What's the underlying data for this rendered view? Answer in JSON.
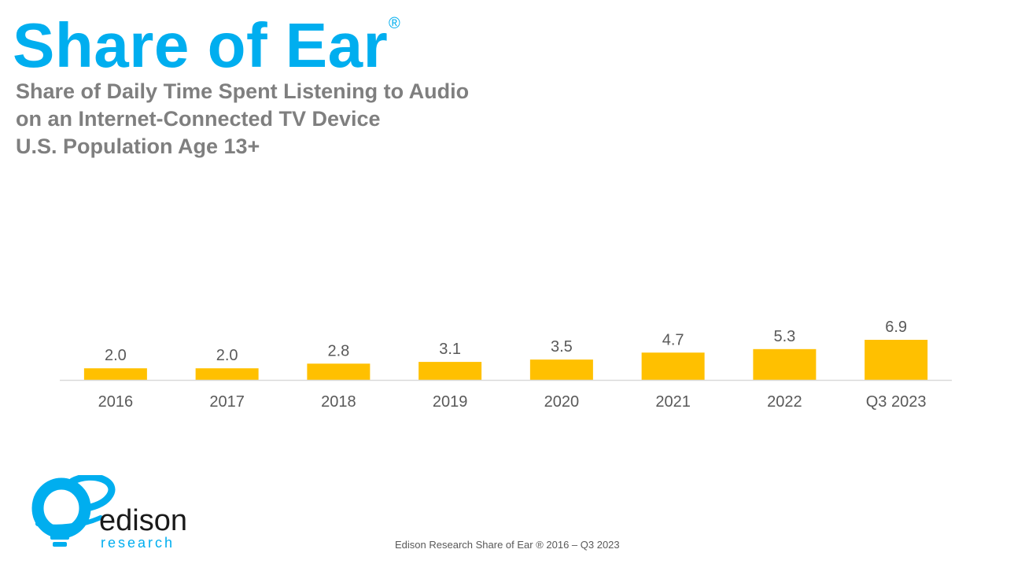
{
  "header": {
    "brand_title": "Share of Ear",
    "reg_mark": "®",
    "subtitle_lines": [
      "Share of Daily Time Spent Listening to Audio",
      "on an Internet-Connected TV Device",
      "U.S. Population Age 13+"
    ]
  },
  "chart_data": {
    "type": "bar",
    "categories": [
      "2016",
      "2017",
      "2018",
      "2019",
      "2020",
      "2021",
      "2022",
      "Q3 2023"
    ],
    "values": [
      2.0,
      2.0,
      2.8,
      3.1,
      3.5,
      4.7,
      5.3,
      6.9
    ],
    "data_labels": [
      "2.0",
      "2.0",
      "2.8",
      "3.1",
      "3.5",
      "4.7",
      "5.3",
      "6.9"
    ],
    "title": "",
    "xlabel": "",
    "ylabel": "",
    "ylim": [
      0,
      6.9
    ],
    "grid": false,
    "legend": "none",
    "colors": {
      "bar": "#ffc000",
      "axis": "#d9d9d9",
      "label": "#595959"
    }
  },
  "logo": {
    "name_text": "edison",
    "sub_text": "research",
    "color": "#00aeef"
  },
  "footer": {
    "source": "Edison Research Share of Ear ® 2016 – Q3 2023"
  },
  "colors": {
    "brand": "#00aeef",
    "subtitle": "#7f7f7f"
  }
}
